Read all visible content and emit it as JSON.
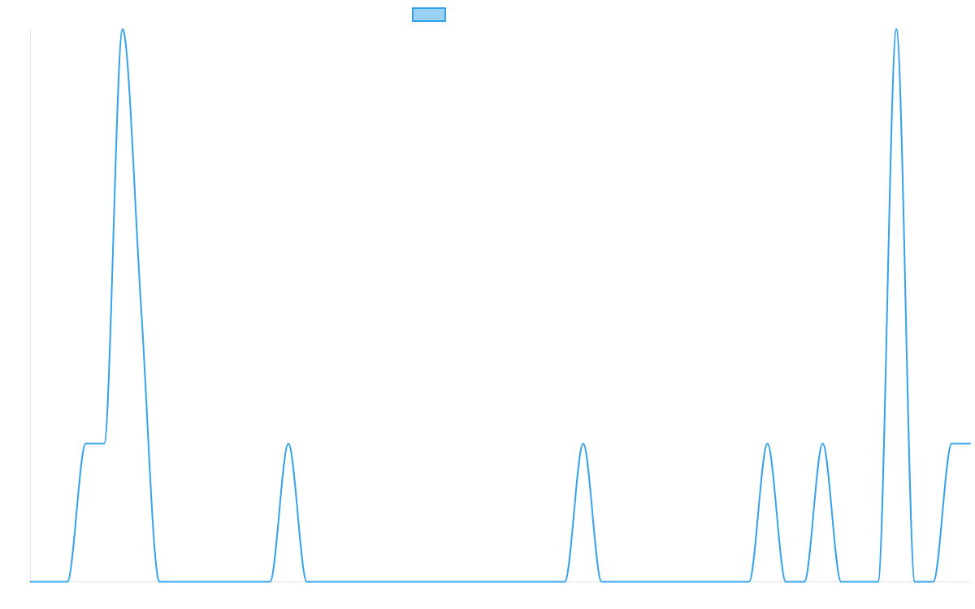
{
  "chart_data": {
    "type": "line",
    "title": "",
    "xlabel": "",
    "ylabel": "",
    "legend": {
      "placement": "top-center",
      "entries": [
        ""
      ]
    },
    "grid": false,
    "x": [
      0,
      1,
      2,
      3,
      4,
      5,
      6,
      7,
      8,
      9,
      10,
      11,
      12,
      13,
      14,
      15,
      16,
      17,
      18,
      19,
      20,
      21,
      22,
      23,
      24,
      25,
      26,
      27,
      28,
      29,
      30,
      31,
      32,
      33,
      34,
      35,
      36,
      37,
      38,
      39,
      40,
      41,
      42,
      43,
      44,
      45,
      46,
      47,
      48,
      49,
      50,
      51
    ],
    "xlim": [
      0,
      51
    ],
    "ylim": [
      0,
      4
    ],
    "series": [
      {
        "name": "",
        "color": "#36a2eb",
        "fill_color": "#9ad0f5",
        "values": [
          0,
          0,
          0,
          1,
          1,
          4,
          2,
          0,
          0,
          0,
          0,
          0,
          0,
          0,
          1,
          0,
          0,
          0,
          0,
          0,
          0,
          0,
          0,
          0,
          0,
          0,
          0,
          0,
          0,
          0,
          1,
          0,
          0,
          0,
          0,
          0,
          0,
          0,
          0,
          0,
          1,
          0,
          0,
          1,
          0,
          0,
          0,
          4,
          0,
          0,
          1,
          1
        ]
      }
    ]
  }
}
